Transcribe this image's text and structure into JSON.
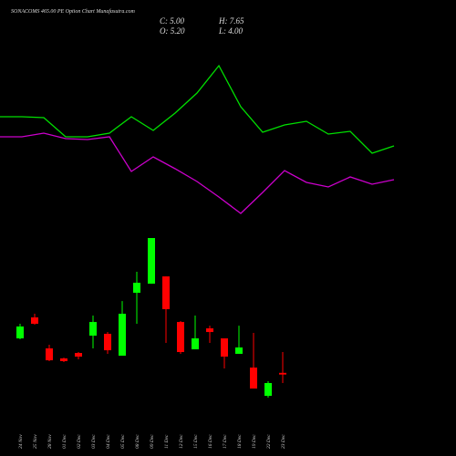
{
  "chart_data": [
    {
      "type": "candlestick",
      "title": "SONACOMS 465.00  PE Option  Chart Munafasutra.com",
      "header": [
        "C: 5.00",
        "O: 5.20",
        "H: 7.65",
        "L: 4.00"
      ],
      "categories": [
        "24 Nov",
        "25 Nov",
        "28 Nov",
        "01 Dec",
        "02 Dec",
        "03 Dec",
        "04 Dec",
        "05 Dec",
        "08 Dec",
        "09 Dec",
        "11 Dec",
        "12 Dec",
        "15 Dec",
        "16 Dec",
        "17 Dec",
        "18 Dec",
        "19 Dec",
        "22 Dec",
        "23 Dec"
      ],
      "open": [
        9.26,
        11.73,
        8.08,
        6.9,
        7.54,
        9.58,
        9.8,
        7.22,
        14.63,
        15.7,
        16.56,
        11.19,
        7.97,
        10.44,
        9.26,
        7.44,
        5.82,
        2.49,
        5.2
      ],
      "high": [
        10.98,
        12.16,
        8.51,
        7.0,
        7.65,
        11.95,
        10.01,
        13.66,
        17.1,
        21.08,
        16.56,
        11.3,
        11.95,
        10.76,
        9.26,
        10.76,
        9.91,
        4.21,
        7.65
      ],
      "low": [
        9.15,
        10.87,
        6.58,
        6.47,
        6.79,
        8.08,
        7.44,
        7.22,
        10.98,
        15.7,
        8.72,
        7.44,
        7.97,
        8.72,
        5.72,
        7.44,
        3.35,
        2.28,
        4.0
      ],
      "close": [
        10.66,
        10.98,
        6.68,
        6.58,
        7.11,
        11.19,
        7.86,
        12.16,
        15.81,
        21.08,
        12.7,
        7.65,
        9.26,
        10.01,
        7.11,
        8.19,
        3.35,
        4.0,
        5.0
      ],
      "up_color": "#00ff00",
      "down_color": "#ff0000"
    },
    {
      "type": "line",
      "ylim": [
        0,
        250
      ],
      "series": [
        {
          "color": "#00e000",
          "values": [
            122,
            122,
            121,
            100,
            100,
            104,
            122,
            107,
            126,
            148,
            178,
            133,
            105,
            113,
            117,
            103,
            106,
            82,
            90
          ]
        },
        {
          "color": "#cc00cc",
          "values": [
            100,
            100,
            104,
            98,
            97,
            100,
            62,
            78,
            65,
            51,
            34,
            16,
            39,
            63,
            50,
            45,
            56,
            48,
            53
          ]
        }
      ]
    }
  ]
}
